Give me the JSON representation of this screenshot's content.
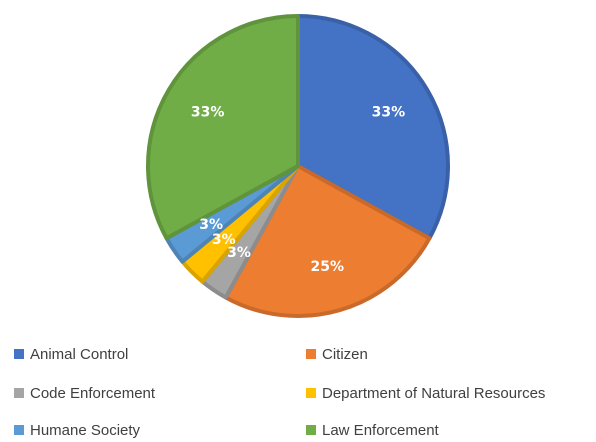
{
  "chart_data": {
    "type": "pie",
    "categories": [
      "Animal Control",
      "Citizen",
      "Code Enforcement",
      "Department of Natural Resources",
      "Humane Society",
      "Law Enforcement"
    ],
    "values": [
      33,
      25,
      3,
      3,
      3,
      33
    ],
    "value_labels": [
      "33%",
      "25%",
      "3%",
      "3%",
      "3%",
      "33%"
    ],
    "colors": [
      "#4472C4",
      "#ED7D31",
      "#A5A5A5",
      "#FFC000",
      "#5B9BD5",
      "#70AD47"
    ],
    "start_angle_deg": 0,
    "direction": "clockwise",
    "legend_position": "bottom",
    "title": ""
  }
}
